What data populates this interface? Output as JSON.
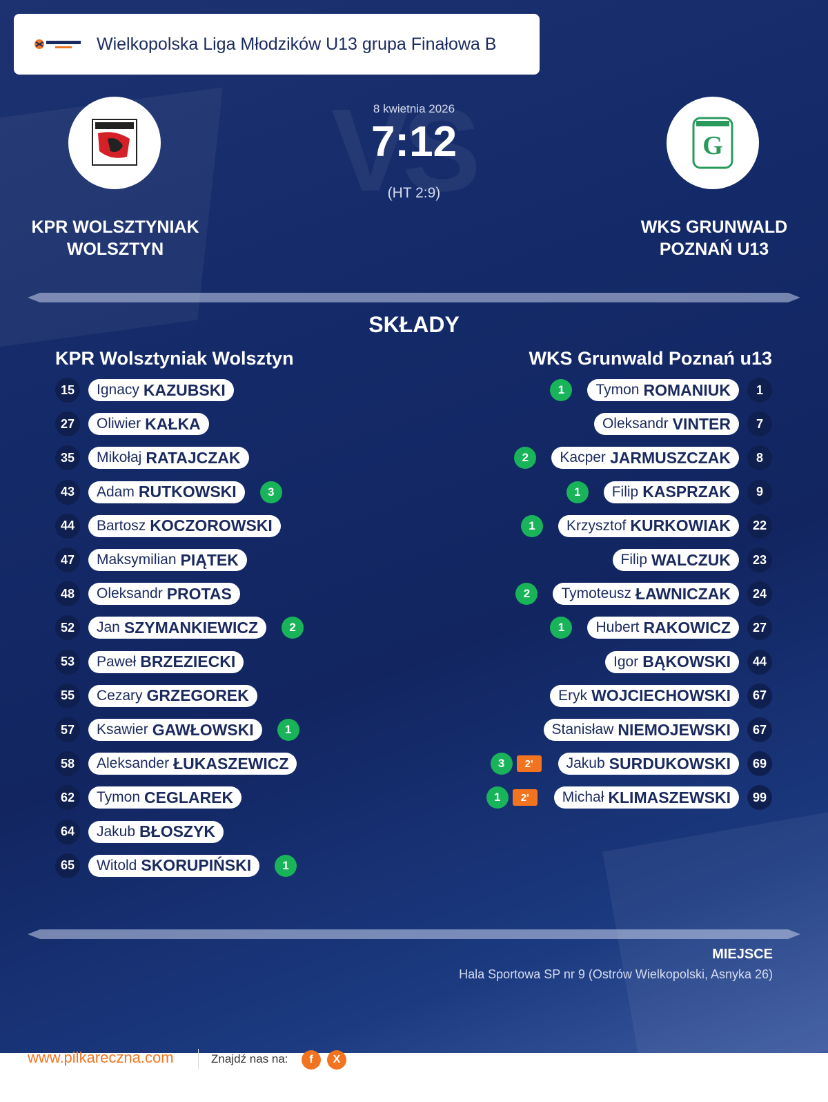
{
  "header": {
    "league": "Wielkopolska Liga Młodzików U13 grupa Finałowa B",
    "logo_icon": "pilkareczna-logo-icon"
  },
  "match": {
    "date": "8 kwietnia 2026",
    "score": "7:12",
    "halftime": "(HT 2:9)",
    "bg_text": "VS"
  },
  "home": {
    "name_line1": "KPR WOLSZTYNIAK",
    "name_line2": "WOLSZTYN",
    "logo_icon": "wolsztyniak-crest-icon"
  },
  "away": {
    "name_line1": "WKS GRUNWALD",
    "name_line2": "POZNAŃ U13",
    "logo_icon": "grunwald-crest-icon"
  },
  "lineups": {
    "title": "SKŁADY",
    "home_title": "KPR Wolsztyniak Wolsztyn",
    "away_title": "WKS Grunwald Poznań u13",
    "home": [
      {
        "num": "15",
        "first": "Ignacy",
        "last": "KAZUBSKI",
        "goals": "",
        "pen": ""
      },
      {
        "num": "27",
        "first": "Oliwier",
        "last": "KAŁKA",
        "goals": "",
        "pen": ""
      },
      {
        "num": "35",
        "first": "Mikołaj",
        "last": "RATAJCZAK",
        "goals": "",
        "pen": ""
      },
      {
        "num": "43",
        "first": "Adam",
        "last": "RUTKOWSKI",
        "goals": "3",
        "pen": ""
      },
      {
        "num": "44",
        "first": "Bartosz",
        "last": "KOCZOROWSKI",
        "goals": "",
        "pen": ""
      },
      {
        "num": "47",
        "first": "Maksymilian",
        "last": "PIĄTEK",
        "goals": "",
        "pen": ""
      },
      {
        "num": "48",
        "first": "Oleksandr",
        "last": "PROTAS",
        "goals": "",
        "pen": ""
      },
      {
        "num": "52",
        "first": "Jan",
        "last": "SZYMANKIEWICZ",
        "goals": "2",
        "pen": ""
      },
      {
        "num": "53",
        "first": "Paweł",
        "last": "BRZEZIECKI",
        "goals": "",
        "pen": ""
      },
      {
        "num": "55",
        "first": "Cezary",
        "last": "GRZEGOREK",
        "goals": "",
        "pen": ""
      },
      {
        "num": "57",
        "first": "Ksawier",
        "last": "GAWŁOWSKI",
        "goals": "1",
        "pen": ""
      },
      {
        "num": "58",
        "first": "Aleksander",
        "last": "ŁUKASZEWICZ",
        "goals": "",
        "pen": ""
      },
      {
        "num": "62",
        "first": "Tymon",
        "last": "CEGLAREK",
        "goals": "",
        "pen": ""
      },
      {
        "num": "64",
        "first": "Jakub",
        "last": "BŁOSZYK",
        "goals": "",
        "pen": ""
      },
      {
        "num": "65",
        "first": "Witold",
        "last": "SKORUPIŃSKI",
        "goals": "1",
        "pen": ""
      }
    ],
    "away": [
      {
        "num": "1",
        "first": "Tymon",
        "last": "ROMANIUK",
        "goals": "1",
        "pen": ""
      },
      {
        "num": "7",
        "first": "Oleksandr",
        "last": "VINTER",
        "goals": "",
        "pen": ""
      },
      {
        "num": "8",
        "first": "Kacper",
        "last": "JARMUSZCZAK",
        "goals": "2",
        "pen": ""
      },
      {
        "num": "9",
        "first": "Filip",
        "last": "KASPRZAK",
        "goals": "1",
        "pen": ""
      },
      {
        "num": "22",
        "first": "Krzysztof",
        "last": "KURKOWIAK",
        "goals": "1",
        "pen": ""
      },
      {
        "num": "23",
        "first": "Filip",
        "last": "WALCZUK",
        "goals": "",
        "pen": ""
      },
      {
        "num": "24",
        "first": "Tymoteusz",
        "last": "ŁAWNICZAK",
        "goals": "2",
        "pen": ""
      },
      {
        "num": "27",
        "first": "Hubert",
        "last": "RAKOWICZ",
        "goals": "1",
        "pen": ""
      },
      {
        "num": "44",
        "first": "Igor",
        "last": "BĄKOWSKI",
        "goals": "",
        "pen": ""
      },
      {
        "num": "67",
        "first": "Eryk",
        "last": "WOJCIECHOWSKI",
        "goals": "",
        "pen": ""
      },
      {
        "num": "67",
        "first": "Stanisław",
        "last": "NIEMOJEWSKI",
        "goals": "",
        "pen": ""
      },
      {
        "num": "69",
        "first": "Jakub",
        "last": "SURDUKOWSKI",
        "goals": "3",
        "pen": "2'"
      },
      {
        "num": "99",
        "first": "Michał",
        "last": "KLIMASZEWSKI",
        "goals": "1",
        "pen": "2'"
      }
    ]
  },
  "venue": {
    "label": "MIEJSCE",
    "value": "Hala Sportowa SP nr 9 (Ostrów Wielkopolski, Asnyka 26)"
  },
  "footer": {
    "site": "www.pilkareczna.com",
    "find_us": "Znajdź nas na:",
    "facebook": "f",
    "x": "X"
  },
  "colors": {
    "navy": "#142a68",
    "green": "#19b45a",
    "orange": "#f27421"
  }
}
